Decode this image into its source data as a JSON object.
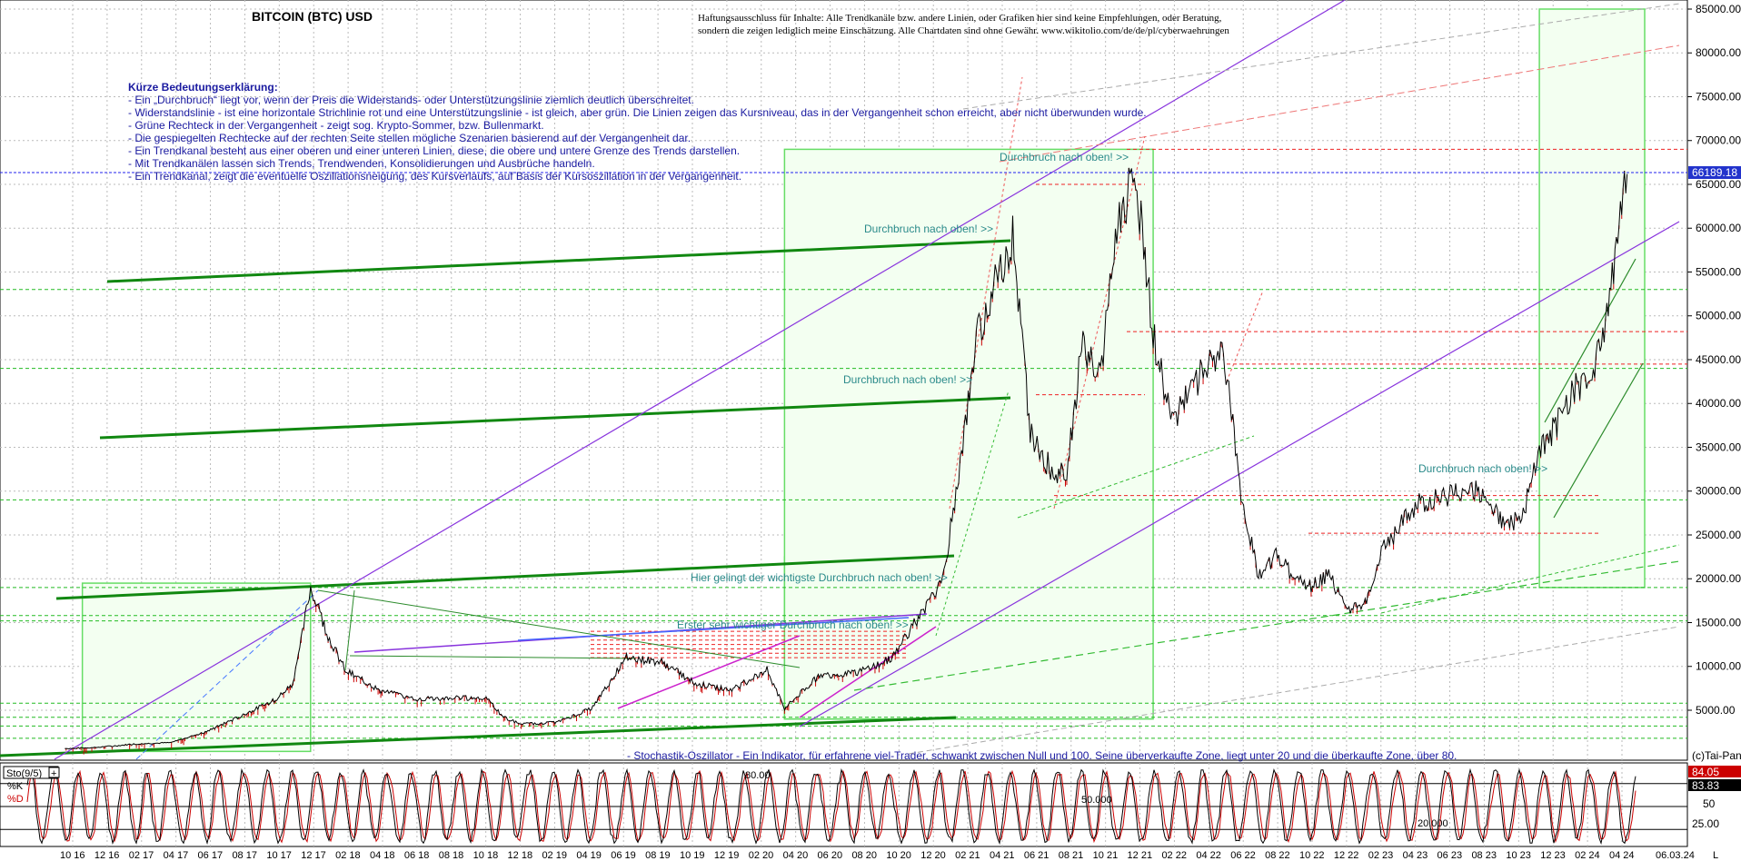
{
  "header": {
    "title": "BITCOIN (BTC) USD",
    "disclaimer_line1": "Haftungsausschluss für Inhalte: Alle Trendkanäle bzw. andere Linien, oder Grafiken hier sind keine Empfehlungen, oder Beratung,",
    "disclaimer_line2": "sondern die zeigen lediglich meine  Einschätzung. Alle Chartdaten sind ohne Gewähr.  www.wikitolio.com/de/de/pl/cyberwaehrungen"
  },
  "legend": {
    "title": "Kürze Bedeutungserklärung:",
    "lines": [
      "- Ein „Durchbruch“ liegt vor, wenn der Preis die Widerstands- oder Unterstützungslinie ziemlich deutlich überschreitet.",
      "- Widerstandslinie - ist eine horizontale Strichlinie rot und eine Unterstützungslinie - ist gleich, aber grün. Die Linien zeigen das Kursniveau, das in der Vergangenheit schon erreicht, aber nicht überwunden wurde.",
      "- Grüne Rechteck in der Vergangenheit - zeigt sog. Krypto-Sommer, bzw. Bullenmarkt.",
      "- Die gespiegelten Rechtecke auf der rechten Seite stellen mögliche Szenarien basierend auf der Vergangenheit dar.",
      "- Ein Trendkanal besteht aus einer oberen und einer unteren Linien, diese, die obere und untere Grenze des Trends darstellen.",
      "- Mit Trendkanälen lassen sich Trends, Trendwenden, Konsolidierungen und Ausbrüche handeln.",
      "- Ein Trendkanal, zeigt die eventuelle Oszillationsneigung, des Kursverlaufs, auf Basis der Kursoszillation in der Vergangenheit."
    ]
  },
  "annotations": {
    "breakout_1": "Durchbruch nach oben! >>",
    "breakout_2": "Durchbruch nach oben! >>",
    "breakout_3": "Durchbruch nach oben! >>",
    "breakout_4": "Durchbruch nach oben! >>",
    "important_breakout": "Hier gelingt der wichtigste Durchbruch nach oben! >>",
    "first_breakout": "Erster sehr wichtiger Durchbruch nach oben! >>",
    "stochastic_note": "- Stochastik-Oszillator - Ein Indikator, für erfahrene viel-Trader, schwankt zwischen Null und 100. Seine überverkaufte Zone, liegt unter 20 und die überkaufte Zone, über 80.",
    "copyright": "(c)Tai-Pan"
  },
  "colors": {
    "price": "#000000",
    "down_candle": "#cc0000",
    "resistance": "#ee2222",
    "support": "#22bb22",
    "trend_green": "#118811",
    "trend_purple": "#8833dd",
    "box": "#66dd66",
    "box_fill": "#f3fff1",
    "current_price_line": "#2222ee",
    "sto_k": "#000000",
    "sto_d": "#cc0000"
  },
  "chart_data": {
    "type": "line",
    "title": "BITCOIN (BTC) USD",
    "y_scale": "linear",
    "ylim": [
      0,
      85000
    ],
    "yticks": [
      5000,
      10000,
      15000,
      20000,
      25000,
      30000,
      35000,
      40000,
      45000,
      50000,
      55000,
      60000,
      65000,
      70000,
      75000,
      80000,
      85000
    ],
    "ytick_labels": [
      "5000.00",
      "10000.00",
      "15000.00",
      "20000.00",
      "25000.00",
      "30000.00",
      "35000.00",
      "40000.00",
      "45000.00",
      "50000.00",
      "55000.00",
      "60000.00",
      "65000.00",
      "70000.00",
      "75000.00",
      "80000.00",
      "85000.00"
    ],
    "current_price_label": "66189.18",
    "current_price": 66189.18,
    "xlim": [
      "2016-09",
      "2024-04"
    ],
    "xtick_labels": [
      "10 16",
      "12 16",
      "02 17",
      "04 17",
      "06 17",
      "08 17",
      "10 17",
      "12 17",
      "02 18",
      "04 18",
      "06 18",
      "08 18",
      "10 18",
      "12 18",
      "02 19",
      "04 19",
      "06 19",
      "08 19",
      "10 19",
      "12 19",
      "02 20",
      "04 20",
      "06 20",
      "08 20",
      "10 20",
      "12 20",
      "02 21",
      "04 21",
      "06 21",
      "08 21",
      "10 21",
      "12 21",
      "02 22",
      "04 22",
      "06 22",
      "08 22",
      "10 22",
      "12 22",
      "02 23",
      "04 23",
      "06 23",
      "08 23",
      "10 23",
      "12 23",
      "02 24",
      "04 24"
    ],
    "last_date_label": "06.03.24",
    "grid": true,
    "series": [
      {
        "name": "",
        "x": [
          "2016-10",
          "2016-12",
          "2017-02",
          "2017-04",
          "2017-06",
          "2017-08",
          "2017-10",
          "2017-11",
          "2017-12",
          "2018-01",
          "2018-02",
          "2018-04",
          "2018-06",
          "2018-08",
          "2018-10",
          "2018-11",
          "2018-12",
          "2019-02",
          "2019-04",
          "2019-06",
          "2019-08",
          "2019-10",
          "2019-12",
          "2020-02",
          "2020-03",
          "2020-05",
          "2020-07",
          "2020-09",
          "2020-10",
          "2020-12",
          "2021-01",
          "2021-02",
          "2021-04",
          "2021-05",
          "2021-06",
          "2021-07",
          "2021-08",
          "2021-09",
          "2021-10",
          "2021-11",
          "2021-12",
          "2022-01",
          "2022-03",
          "2022-04",
          "2022-05",
          "2022-06",
          "2022-07",
          "2022-08",
          "2022-09",
          "2022-10",
          "2022-11",
          "2022-12",
          "2023-01",
          "2023-03",
          "2023-04",
          "2023-06",
          "2023-07",
          "2023-08",
          "2023-09",
          "2023-10",
          "2023-11",
          "2023-12",
          "2024-01",
          "2024-02",
          "2024-03"
        ],
        "values": [
          620,
          780,
          1150,
          1300,
          2500,
          4300,
          6200,
          8000,
          19000,
          13500,
          9500,
          7200,
          6300,
          6400,
          6400,
          4200,
          3400,
          3600,
          5200,
          11000,
          10500,
          8000,
          7300,
          9600,
          5200,
          9000,
          9200,
          10800,
          13700,
          19500,
          33000,
          48000,
          59000,
          37000,
          33000,
          31500,
          47000,
          43000,
          61000,
          66000,
          48000,
          38000,
          44000,
          46000,
          30000,
          20000,
          23000,
          20000,
          19000,
          20500,
          16500,
          16800,
          23000,
          28500,
          29000,
          30500,
          29500,
          26000,
          27000,
          34500,
          37500,
          42000,
          42500,
          52000,
          66189
        ]
      }
    ],
    "sto": {
      "label": "Sto(9/5)",
      "k_label": "%K",
      "d_label": "%D",
      "levels": [
        "80.00",
        "50.000",
        "20.000"
      ],
      "right_labels": [
        "84.05",
        "83.83",
        "50",
        "25.00"
      ],
      "k_last": 84.05,
      "d_last": 83.83
    }
  }
}
